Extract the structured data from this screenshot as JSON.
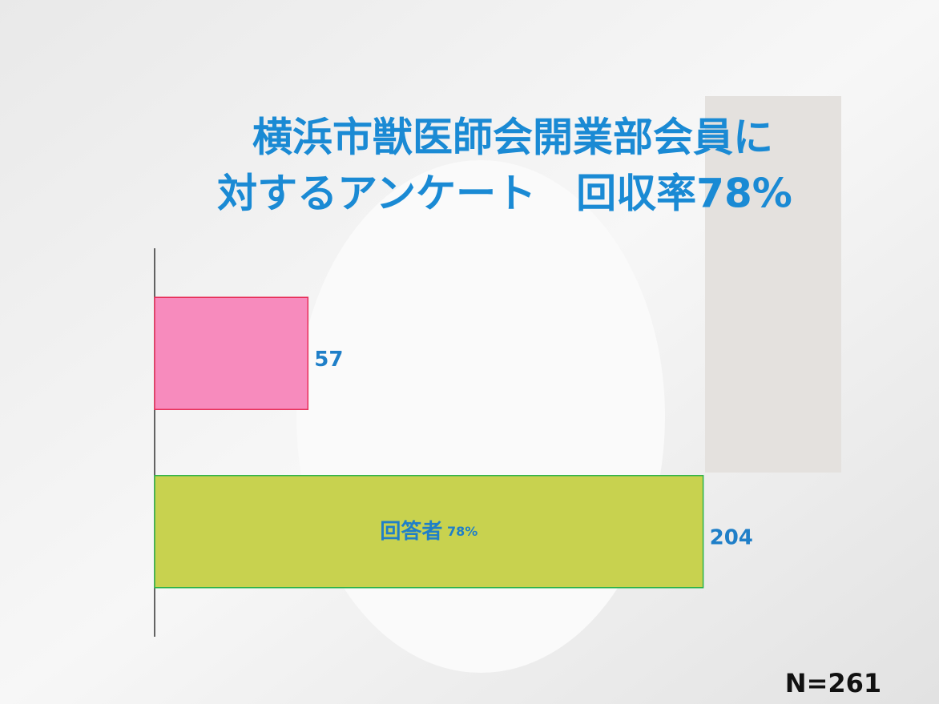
{
  "chart_data": {
    "type": "bar",
    "orientation": "horizontal",
    "title": [
      "横浜市獣医師会開業部会員に",
      "対するアンケート　回収率78%"
    ],
    "categories": [
      null,
      null
    ],
    "values": [
      57,
      204
    ],
    "colors": [
      "#f78bbd",
      "#c8d24f"
    ],
    "edge_colors": [
      "#e8305a",
      "#2db34a"
    ],
    "inner_labels": [
      null,
      {
        "name": "回答者",
        "share": "78%"
      }
    ],
    "xlim": [
      0,
      250
    ],
    "note": "N=261"
  }
}
